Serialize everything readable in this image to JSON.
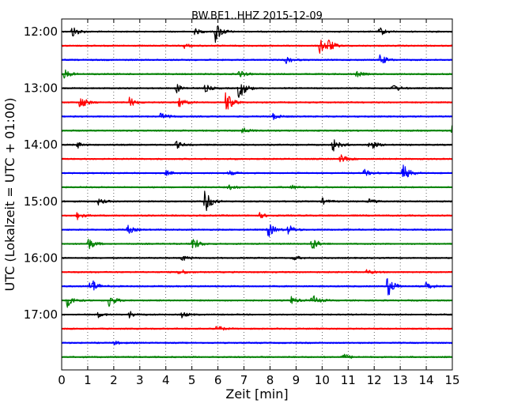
{
  "chart_data": {
    "type": "line",
    "title": "BW.BE1..HHZ 2015-12-09",
    "xlabel": "Zeit  [min]",
    "ylabel": "UTC (Lokalzeit = UTC + 01:00)",
    "xlim": [
      0,
      15
    ],
    "x_ticks": [
      "0",
      "1",
      "2",
      "3",
      "4",
      "5",
      "6",
      "7",
      "8",
      "9",
      "10",
      "11",
      "12",
      "13",
      "14",
      "15"
    ],
    "y_tick_labels": [
      "12:00",
      "13:00",
      "14:00",
      "15:00",
      "16:00",
      "17:00"
    ],
    "grid": "vertical dotted",
    "series_colors": [
      "#000000",
      "#ff0000",
      "#0000ff",
      "#008000"
    ],
    "traces": [
      {
        "start": "12:00",
        "events": [
          [
            0.4,
            0.5
          ],
          [
            5.1,
            0.25
          ],
          [
            5.9,
            0.9
          ],
          [
            12.2,
            0.35
          ]
        ]
      },
      {
        "start": "12:15",
        "events": [
          [
            4.7,
            0.2
          ],
          [
            9.9,
            0.7
          ],
          [
            10.2,
            0.5
          ]
        ]
      },
      {
        "start": "12:30",
        "events": [
          [
            8.6,
            0.3
          ],
          [
            12.2,
            0.5
          ]
        ]
      },
      {
        "start": "12:45",
        "events": [
          [
            0.1,
            0.35
          ],
          [
            6.8,
            0.3
          ],
          [
            11.3,
            0.25
          ]
        ]
      },
      {
        "start": "13:00",
        "events": [
          [
            4.4,
            0.35
          ],
          [
            5.5,
            0.3
          ],
          [
            6.8,
            1.0
          ],
          [
            12.7,
            0.4
          ]
        ]
      },
      {
        "start": "13:15",
        "events": [
          [
            0.7,
            0.6
          ],
          [
            2.6,
            0.4
          ],
          [
            4.5,
            0.4
          ],
          [
            6.3,
            0.9
          ]
        ]
      },
      {
        "start": "13:30",
        "events": [
          [
            3.8,
            0.3
          ],
          [
            8.1,
            0.25
          ]
        ]
      },
      {
        "start": "13:45",
        "events": [
          [
            6.9,
            0.3
          ],
          [
            15.0,
            0.5
          ]
        ]
      },
      {
        "start": "14:00",
        "events": [
          [
            0.6,
            0.25
          ],
          [
            4.4,
            0.3
          ],
          [
            10.4,
            0.55
          ],
          [
            11.8,
            0.5
          ]
        ]
      },
      {
        "start": "14:15",
        "events": [
          [
            10.7,
            0.35
          ]
        ]
      },
      {
        "start": "14:30",
        "events": [
          [
            4.0,
            0.2
          ],
          [
            6.4,
            0.2
          ],
          [
            11.6,
            0.3
          ],
          [
            13.1,
            0.75
          ]
        ]
      },
      {
        "start": "14:45",
        "events": [
          [
            6.4,
            0.2
          ],
          [
            8.8,
            0.2
          ]
        ]
      },
      {
        "start": "15:00",
        "events": [
          [
            1.4,
            0.25
          ],
          [
            5.5,
            0.95
          ],
          [
            10.0,
            0.25
          ],
          [
            11.8,
            0.2
          ]
        ]
      },
      {
        "start": "15:15",
        "events": [
          [
            0.6,
            0.3
          ],
          [
            7.6,
            0.2
          ]
        ]
      },
      {
        "start": "15:30",
        "events": [
          [
            2.5,
            0.4
          ],
          [
            7.9,
            0.7
          ],
          [
            8.7,
            0.4
          ]
        ]
      },
      {
        "start": "15:45",
        "events": [
          [
            1.0,
            0.55
          ],
          [
            5.0,
            0.65
          ],
          [
            9.6,
            0.55
          ]
        ]
      },
      {
        "start": "16:00",
        "events": [
          [
            4.6,
            0.25
          ],
          [
            8.9,
            0.2
          ]
        ]
      },
      {
        "start": "16:15",
        "events": [
          [
            4.5,
            0.3
          ],
          [
            11.7,
            0.2
          ]
        ]
      },
      {
        "start": "16:30",
        "events": [
          [
            1.1,
            0.75
          ],
          [
            12.5,
            0.95
          ],
          [
            14.0,
            0.35
          ]
        ]
      },
      {
        "start": "16:45",
        "events": [
          [
            0.2,
            0.55
          ],
          [
            1.8,
            0.55
          ],
          [
            8.8,
            0.3
          ],
          [
            9.6,
            0.5
          ]
        ]
      },
      {
        "start": "17:00",
        "events": [
          [
            1.4,
            0.2
          ],
          [
            2.6,
            0.3
          ],
          [
            4.6,
            0.25
          ]
        ]
      },
      {
        "start": "17:15",
        "events": [
          [
            5.9,
            0.35
          ]
        ]
      },
      {
        "start": "17:30",
        "events": [
          [
            2.0,
            0.15
          ]
        ]
      },
      {
        "start": "17:45",
        "events": [
          [
            10.8,
            0.25
          ]
        ]
      }
    ]
  }
}
